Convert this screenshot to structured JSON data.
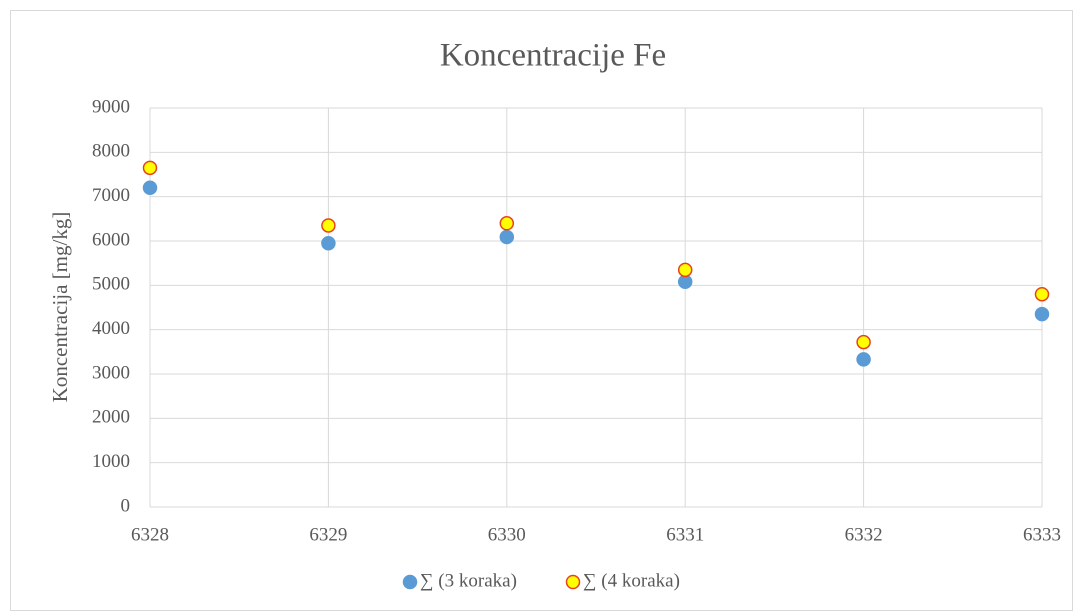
{
  "chart_data": {
    "type": "scatter",
    "title": "Koncentracije Fe",
    "y_label": "Koncentracija [mg/kg]",
    "x": [
      6328,
      6329,
      6330,
      6331,
      6332,
      6333
    ],
    "series": [
      {
        "name": "∑ (3 koraka)",
        "color": "#5b9bd5",
        "values": [
          7200,
          5950,
          6090,
          5080,
          3330,
          4350
        ]
      },
      {
        "name": "∑ (4 koraka)",
        "color": "#ffff00",
        "edge_color": "#e8421d",
        "values": [
          7650,
          6350,
          6400,
          5350,
          3720,
          4800
        ]
      }
    ],
    "xlim": [
      6328,
      6333
    ],
    "xticks": [
      6328,
      6329,
      6330,
      6331,
      6332,
      6333
    ],
    "ylim": [
      0,
      9000
    ],
    "yticks": [
      0,
      1000,
      2000,
      3000,
      4000,
      5000,
      6000,
      7000,
      8000,
      9000
    ],
    "grid": true,
    "legend": "bottom"
  }
}
